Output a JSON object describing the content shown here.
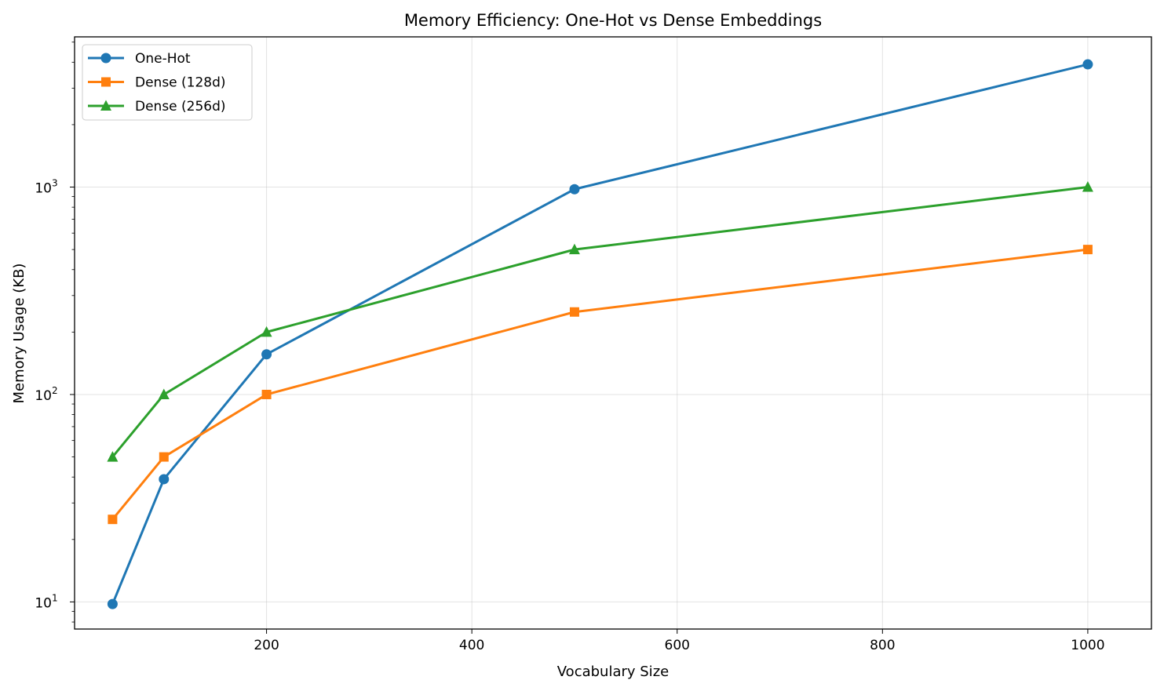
{
  "chart_data": {
    "type": "line",
    "title": "Memory Efficiency: One-Hot vs Dense Embeddings",
    "xlabel": "Vocabulary Size",
    "ylabel": "Memory Usage (KB)",
    "xscale": "linear",
    "yscale": "log",
    "xlim": [
      13,
      1062
    ],
    "ylim": [
      7.4,
      5300
    ],
    "xticks": [
      200,
      400,
      600,
      800,
      1000
    ],
    "yticks": [
      {
        "value": 10,
        "base": "10",
        "exp": "1"
      },
      {
        "value": 100,
        "base": "10",
        "exp": "2"
      },
      {
        "value": 1000,
        "base": "10",
        "exp": "3"
      }
    ],
    "grid": true,
    "legend": "top-left",
    "series": [
      {
        "name": "One-Hot",
        "color": "#1f77b4",
        "marker": "circle",
        "x": [
          50,
          100,
          200,
          500,
          1000
        ],
        "y": [
          9.77,
          39.06,
          156.25,
          976.56,
          3906.25
        ]
      },
      {
        "name": "Dense (128d)",
        "color": "#ff7f0e",
        "marker": "square",
        "x": [
          50,
          100,
          200,
          500,
          1000
        ],
        "y": [
          25,
          50,
          100,
          250,
          500
        ]
      },
      {
        "name": "Dense (256d)",
        "color": "#2ca02c",
        "marker": "triangle",
        "x": [
          50,
          100,
          200,
          500,
          1000
        ],
        "y": [
          50,
          100,
          200,
          500,
          1000
        ]
      }
    ]
  }
}
